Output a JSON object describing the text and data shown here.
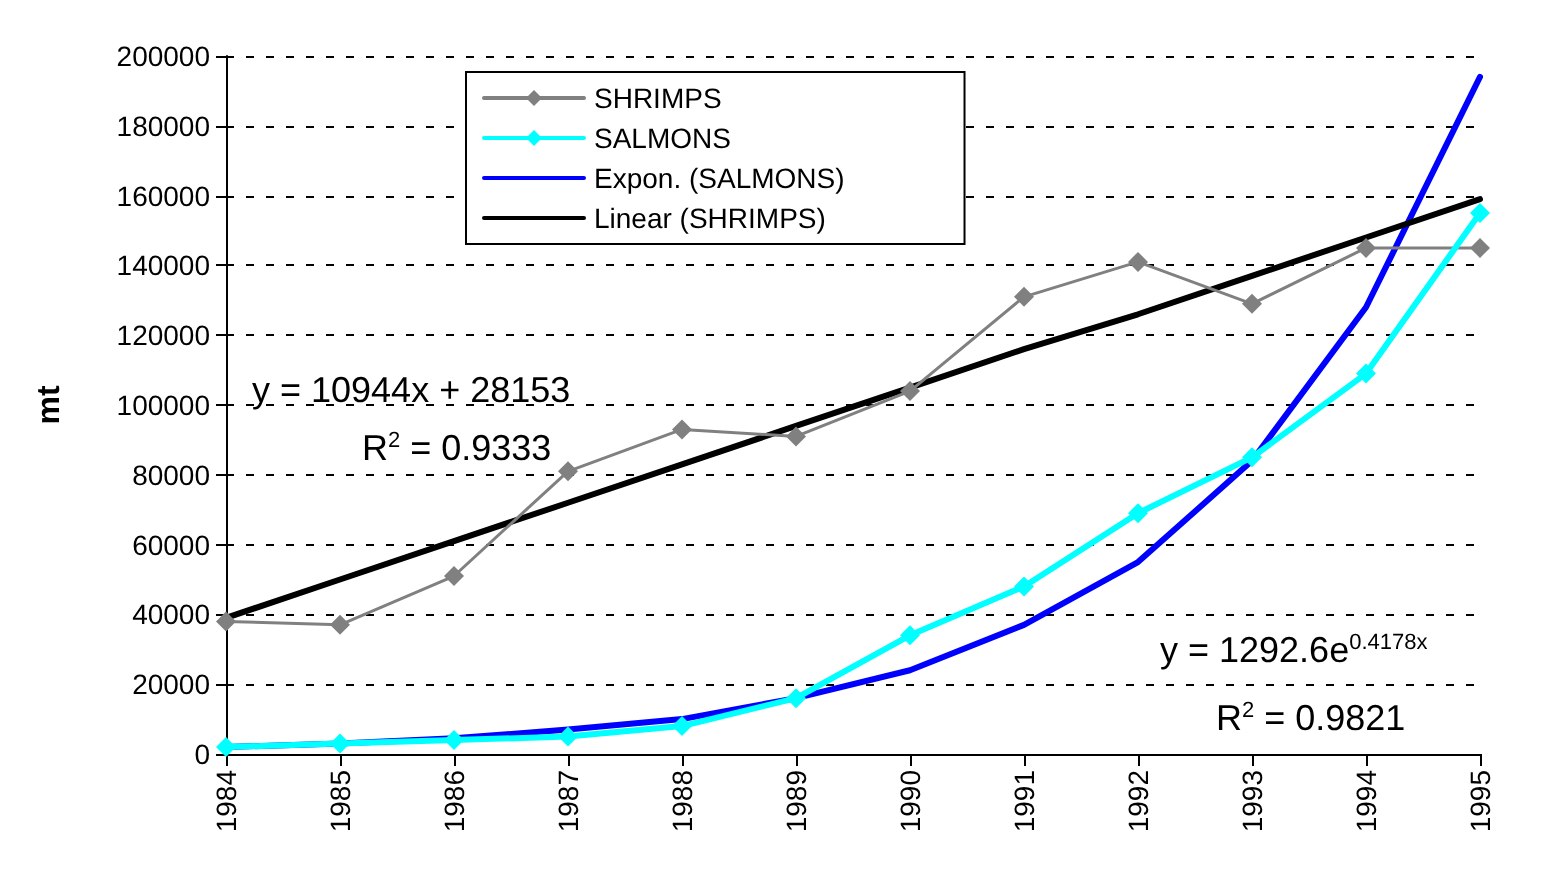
{
  "chart_data": {
    "type": "line",
    "ylabel": "mt",
    "categories": [
      "1984",
      "1985",
      "1986",
      "1987",
      "1988",
      "1989",
      "1990",
      "1991",
      "1992",
      "1993",
      "1994",
      "1995"
    ],
    "series": [
      {
        "name": "SHRIMPS",
        "color": "#808080",
        "marker": "diamond",
        "values": [
          38000,
          37000,
          51000,
          81000,
          93000,
          91000,
          104000,
          131000,
          141000,
          129000,
          145000,
          145000
        ]
      },
      {
        "name": "SALMONS",
        "color": "#00ffff",
        "marker": "diamond",
        "values": [
          2000,
          3000,
          4000,
          5000,
          8000,
          16000,
          34000,
          48000,
          69000,
          85000,
          109000,
          155000
        ]
      },
      {
        "name": "Expon. (SALMONS)",
        "color": "#0000ff",
        "marker": "none",
        "values": [
          2000,
          3000,
          4500,
          7000,
          10000,
          16000,
          24000,
          37000,
          55000,
          84000,
          128000,
          194000
        ]
      },
      {
        "name": "Linear (SHRIMPS)",
        "color": "#000000",
        "marker": "none",
        "values": [
          39000,
          50000,
          61000,
          72000,
          83000,
          94000,
          105000,
          116000,
          126000,
          137000,
          148000,
          159000
        ]
      }
    ],
    "ylim": [
      0,
      200000
    ],
    "yticks": [
      0,
      20000,
      40000,
      60000,
      80000,
      100000,
      120000,
      140000,
      160000,
      180000,
      200000
    ],
    "grid": "y",
    "legend": "top left",
    "annotations": [
      "y = 10944x + 28153",
      "R$^{2}$ = 0.9333",
      "y = 1292.6e$^{0.4178x}$",
      "R$^{2}$ = 0.9821"
    ]
  }
}
